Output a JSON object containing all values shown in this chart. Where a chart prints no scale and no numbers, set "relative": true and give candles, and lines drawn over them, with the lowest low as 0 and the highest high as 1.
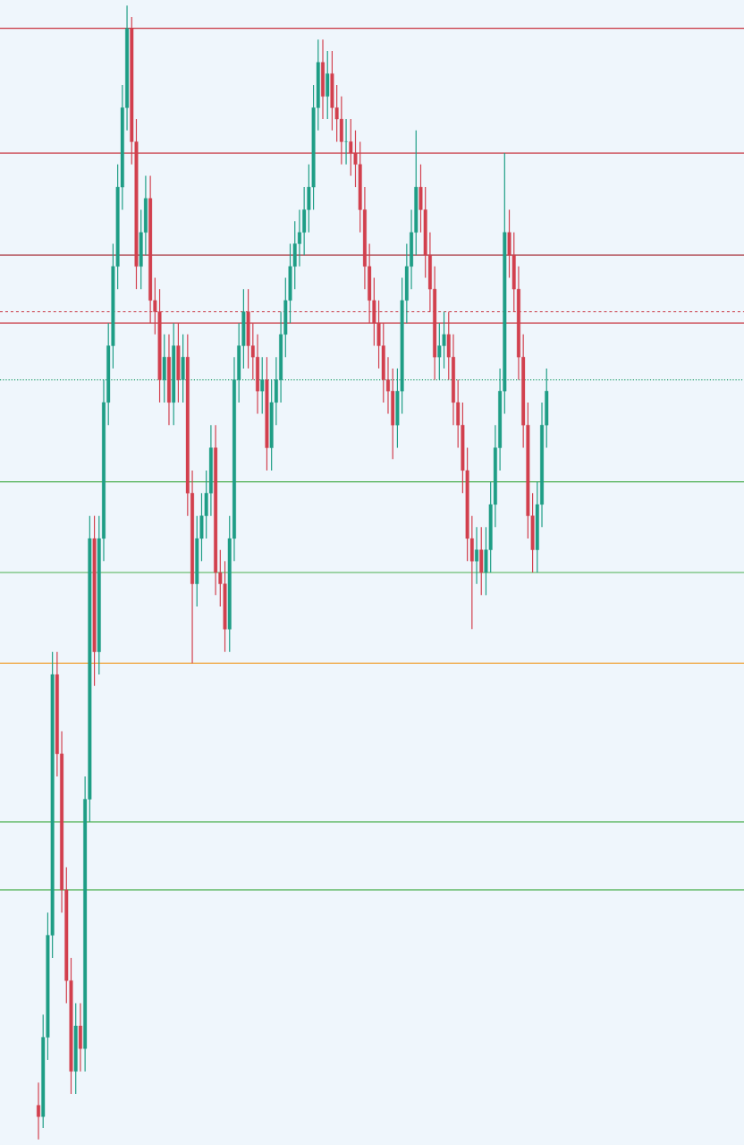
{
  "chart_data": {
    "type": "candlestick",
    "relative": true,
    "categories": [
      null,
      null,
      null,
      null,
      null,
      null,
      null,
      null,
      null,
      null,
      null,
      null,
      null,
      null,
      null,
      null,
      null,
      null,
      null,
      null,
      null,
      null,
      null,
      null,
      null,
      null,
      null,
      null,
      null,
      null,
      null,
      null,
      null,
      null,
      null,
      null,
      null,
      null,
      null,
      null,
      null,
      null,
      null,
      null,
      null,
      null,
      null,
      null,
      null,
      null,
      null,
      null,
      null,
      null,
      null,
      null,
      null,
      null,
      null,
      null,
      null,
      null,
      null,
      null,
      null,
      null,
      null,
      null,
      null,
      null,
      null,
      null,
      null,
      null,
      null,
      null,
      null,
      null,
      null,
      null,
      null,
      null,
      null,
      null,
      null,
      null,
      null,
      null,
      null,
      null,
      null,
      null,
      null,
      null,
      null,
      null,
      null,
      null,
      null,
      null,
      null,
      null,
      null,
      null,
      null,
      null,
      null,
      null,
      null,
      null
    ],
    "ohlc": [
      [
        0.03,
        0.05,
        0.0,
        0.02
      ],
      [
        0.02,
        0.11,
        0.01,
        0.09
      ],
      [
        0.09,
        0.2,
        0.07,
        0.18
      ],
      [
        0.18,
        0.43,
        0.16,
        0.41
      ],
      [
        0.41,
        0.43,
        0.32,
        0.34
      ],
      [
        0.34,
        0.36,
        0.2,
        0.22
      ],
      [
        0.22,
        0.24,
        0.12,
        0.14
      ],
      [
        0.14,
        0.16,
        0.04,
        0.06
      ],
      [
        0.06,
        0.12,
        0.04,
        0.1
      ],
      [
        0.1,
        0.12,
        0.06,
        0.08
      ],
      [
        0.08,
        0.32,
        0.06,
        0.3
      ],
      [
        0.3,
        0.55,
        0.28,
        0.53
      ],
      [
        0.53,
        0.55,
        0.4,
        0.43
      ],
      [
        0.43,
        0.55,
        0.41,
        0.53
      ],
      [
        0.53,
        0.67,
        0.51,
        0.65
      ],
      [
        0.65,
        0.72,
        0.63,
        0.7
      ],
      [
        0.7,
        0.79,
        0.68,
        0.77
      ],
      [
        0.77,
        0.86,
        0.75,
        0.84
      ],
      [
        0.84,
        0.93,
        0.82,
        0.91
      ],
      [
        0.91,
        1.0,
        0.89,
        0.98
      ],
      [
        0.98,
        0.99,
        0.86,
        0.88
      ],
      [
        0.88,
        0.9,
        0.75,
        0.77
      ],
      [
        0.77,
        0.82,
        0.75,
        0.8
      ],
      [
        0.8,
        0.85,
        0.78,
        0.83
      ],
      [
        0.83,
        0.85,
        0.72,
        0.74
      ],
      [
        0.74,
        0.76,
        0.71,
        0.73
      ],
      [
        0.73,
        0.75,
        0.65,
        0.67
      ],
      [
        0.67,
        0.71,
        0.65,
        0.69
      ],
      [
        0.69,
        0.71,
        0.63,
        0.65
      ],
      [
        0.65,
        0.72,
        0.63,
        0.7
      ],
      [
        0.7,
        0.72,
        0.65,
        0.67
      ],
      [
        0.67,
        0.71,
        0.65,
        0.69
      ],
      [
        0.69,
        0.71,
        0.55,
        0.57
      ],
      [
        0.57,
        0.59,
        0.42,
        0.49
      ],
      [
        0.49,
        0.55,
        0.47,
        0.53
      ],
      [
        0.53,
        0.57,
        0.51,
        0.55
      ],
      [
        0.55,
        0.59,
        0.53,
        0.57
      ],
      [
        0.57,
        0.63,
        0.55,
        0.61
      ],
      [
        0.61,
        0.63,
        0.48,
        0.5
      ],
      [
        0.5,
        0.52,
        0.47,
        0.49
      ],
      [
        0.49,
        0.51,
        0.43,
        0.45
      ],
      [
        0.45,
        0.55,
        0.43,
        0.53
      ],
      [
        0.53,
        0.69,
        0.51,
        0.67
      ],
      [
        0.67,
        0.72,
        0.65,
        0.7
      ],
      [
        0.7,
        0.75,
        0.68,
        0.73
      ],
      [
        0.73,
        0.75,
        0.68,
        0.7
      ],
      [
        0.7,
        0.72,
        0.67,
        0.69
      ],
      [
        0.69,
        0.71,
        0.64,
        0.66
      ],
      [
        0.66,
        0.69,
        0.64,
        0.67
      ],
      [
        0.67,
        0.69,
        0.59,
        0.61
      ],
      [
        0.61,
        0.67,
        0.59,
        0.65
      ],
      [
        0.65,
        0.69,
        0.63,
        0.67
      ],
      [
        0.67,
        0.73,
        0.65,
        0.71
      ],
      [
        0.71,
        0.76,
        0.69,
        0.74
      ],
      [
        0.74,
        0.79,
        0.72,
        0.77
      ],
      [
        0.77,
        0.81,
        0.75,
        0.79
      ],
      [
        0.79,
        0.82,
        0.77,
        0.8
      ],
      [
        0.8,
        0.84,
        0.78,
        0.82
      ],
      [
        0.82,
        0.86,
        0.8,
        0.84
      ],
      [
        0.84,
        0.93,
        0.82,
        0.91
      ],
      [
        0.91,
        0.97,
        0.89,
        0.95
      ],
      [
        0.95,
        0.97,
        0.9,
        0.92
      ],
      [
        0.92,
        0.96,
        0.9,
        0.94
      ],
      [
        0.94,
        0.96,
        0.89,
        0.91
      ],
      [
        0.91,
        0.93,
        0.88,
        0.9
      ],
      [
        0.9,
        0.92,
        0.86,
        0.88
      ],
      [
        0.88,
        0.9,
        0.86,
        0.88
      ],
      [
        0.88,
        0.9,
        0.85,
        0.87
      ],
      [
        0.87,
        0.89,
        0.84,
        0.86
      ],
      [
        0.86,
        0.88,
        0.8,
        0.82
      ],
      [
        0.82,
        0.84,
        0.75,
        0.77
      ],
      [
        0.77,
        0.79,
        0.72,
        0.74
      ],
      [
        0.74,
        0.76,
        0.7,
        0.72
      ],
      [
        0.72,
        0.74,
        0.68,
        0.7
      ],
      [
        0.7,
        0.72,
        0.65,
        0.67
      ],
      [
        0.67,
        0.69,
        0.64,
        0.66
      ],
      [
        0.66,
        0.68,
        0.6,
        0.63
      ],
      [
        0.63,
        0.68,
        0.61,
        0.66
      ],
      [
        0.66,
        0.76,
        0.64,
        0.74
      ],
      [
        0.74,
        0.79,
        0.72,
        0.77
      ],
      [
        0.77,
        0.82,
        0.75,
        0.8
      ],
      [
        0.8,
        0.89,
        0.78,
        0.84
      ],
      [
        0.84,
        0.86,
        0.8,
        0.82
      ],
      [
        0.82,
        0.84,
        0.76,
        0.78
      ],
      [
        0.78,
        0.8,
        0.73,
        0.75
      ],
      [
        0.75,
        0.77,
        0.67,
        0.69
      ],
      [
        0.69,
        0.72,
        0.67,
        0.7
      ],
      [
        0.7,
        0.73,
        0.68,
        0.71
      ],
      [
        0.71,
        0.73,
        0.67,
        0.69
      ],
      [
        0.69,
        0.71,
        0.63,
        0.65
      ],
      [
        0.65,
        0.67,
        0.61,
        0.63
      ],
      [
        0.63,
        0.65,
        0.57,
        0.59
      ],
      [
        0.59,
        0.61,
        0.51,
        0.53
      ],
      [
        0.53,
        0.55,
        0.45,
        0.51
      ],
      [
        0.51,
        0.54,
        0.49,
        0.52
      ],
      [
        0.52,
        0.54,
        0.48,
        0.5
      ],
      [
        0.5,
        0.54,
        0.48,
        0.52
      ],
      [
        0.52,
        0.58,
        0.5,
        0.56
      ],
      [
        0.56,
        0.63,
        0.54,
        0.61
      ],
      [
        0.61,
        0.68,
        0.59,
        0.66
      ],
      [
        0.66,
        0.87,
        0.64,
        0.8
      ],
      [
        0.8,
        0.82,
        0.76,
        0.78
      ],
      [
        0.78,
        0.8,
        0.73,
        0.75
      ],
      [
        0.75,
        0.77,
        0.67,
        0.69
      ],
      [
        0.69,
        0.71,
        0.61,
        0.63
      ],
      [
        0.63,
        0.65,
        0.53,
        0.55
      ],
      [
        0.55,
        0.57,
        0.5,
        0.52
      ],
      [
        0.52,
        0.58,
        0.5,
        0.56
      ],
      [
        0.56,
        0.65,
        0.54,
        0.63
      ],
      [
        0.63,
        0.68,
        0.61,
        0.66
      ]
    ],
    "colors": [
      "#d2404e",
      "#1f9e86",
      "#1f9e86",
      "#1f9e86",
      "#d2404e",
      "#d2404e",
      "#d2404e",
      "#d2404e",
      "#1f9e86",
      "#d2404e",
      "#1f9e86",
      "#1f9e86",
      "#d2404e",
      "#1f9e86",
      "#1f9e86",
      "#1f9e86",
      "#1f9e86",
      "#1f9e86",
      "#1f9e86",
      "#1f9e86",
      "#d2404e",
      "#d2404e",
      "#1f9e86",
      "#1f9e86",
      "#d2404e",
      "#d2404e",
      "#d2404e",
      "#1f9e86",
      "#d2404e",
      "#1f9e86",
      "#d2404e",
      "#1f9e86",
      "#d2404e",
      "#d2404e",
      "#1f9e86",
      "#1f9e86",
      "#1f9e86",
      "#1f9e86",
      "#d2404e",
      "#d2404e",
      "#d2404e",
      "#1f9e86",
      "#1f9e86",
      "#1f9e86",
      "#1f9e86",
      "#d2404e",
      "#d2404e",
      "#d2404e",
      "#1f9e86",
      "#d2404e",
      "#1f9e86",
      "#1f9e86",
      "#1f9e86",
      "#1f9e86",
      "#1f9e86",
      "#1f9e86",
      "#1f9e86",
      "#1f9e86",
      "#1f9e86",
      "#1f9e86",
      "#1f9e86",
      "#d2404e",
      "#1f9e86",
      "#d2404e",
      "#d2404e",
      "#d2404e",
      "#1f9e86",
      "#d2404e",
      "#d2404e",
      "#d2404e",
      "#d2404e",
      "#d2404e",
      "#d2404e",
      "#d2404e",
      "#d2404e",
      "#d2404e",
      "#d2404e",
      "#1f9e86",
      "#1f9e86",
      "#1f9e86",
      "#1f9e86",
      "#1f9e86",
      "#d2404e",
      "#d2404e",
      "#d2404e",
      "#d2404e",
      "#1f9e86",
      "#1f9e86",
      "#d2404e",
      "#d2404e",
      "#d2404e",
      "#d2404e",
      "#d2404e",
      "#d2404e",
      "#1f9e86",
      "#d2404e",
      "#1f9e86",
      "#1f9e86",
      "#1f9e86",
      "#1f9e86",
      "#1f9e86",
      "#d2404e",
      "#d2404e",
      "#d2404e",
      "#d2404e",
      "#d2404e",
      "#d2404e",
      "#1f9e86",
      "#1f9e86",
      "#1f9e86"
    ],
    "ref_lines": [
      {
        "axis": "y",
        "value": 0.98,
        "color": "#c9343f"
      },
      {
        "axis": "y",
        "value": 0.87,
        "color": "#c9343f"
      },
      {
        "axis": "y",
        "value": 0.78,
        "color": "#a8323b"
      },
      {
        "axis": "y",
        "value": 0.73,
        "color": "#c9343f",
        "line_style": "dashed"
      },
      {
        "axis": "y",
        "value": 0.72,
        "color": "#c9343f"
      },
      {
        "axis": "y",
        "value": 0.67,
        "color": "#1f9e6a",
        "line_style": "dotted"
      },
      {
        "axis": "y",
        "value": 0.58,
        "color": "#4caf50"
      },
      {
        "axis": "y",
        "value": 0.5,
        "color": "#4caf50"
      },
      {
        "axis": "y",
        "value": 0.42,
        "color": "#f0a030"
      },
      {
        "axis": "y",
        "value": 0.28,
        "color": "#4caf50"
      },
      {
        "axis": "y",
        "value": 0.22,
        "color": "#4caf50"
      }
    ]
  }
}
